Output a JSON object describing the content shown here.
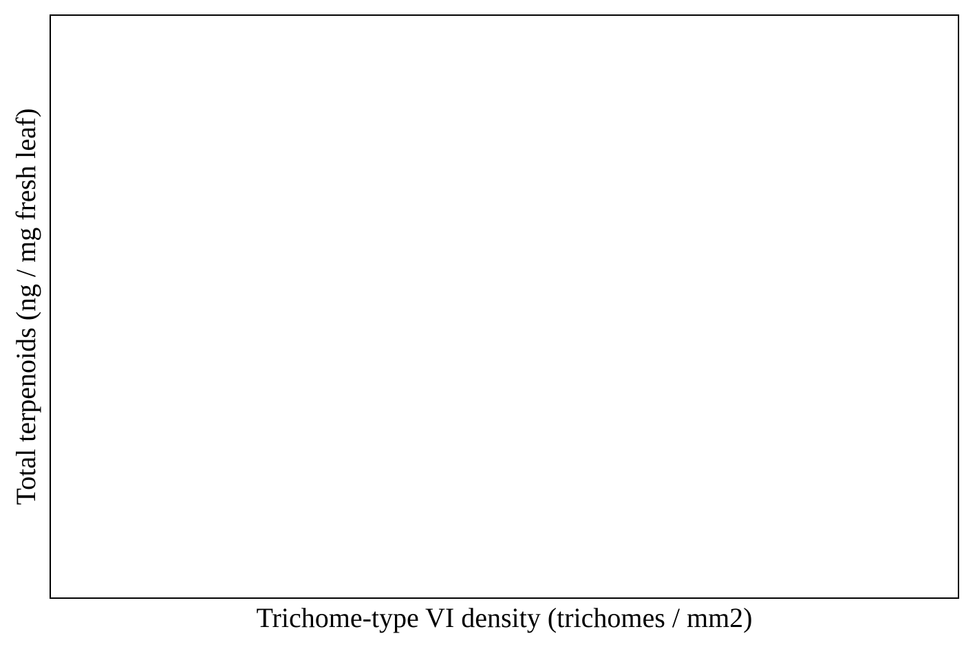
{
  "chart_data": {
    "type": "scatter",
    "title": "",
    "xlabel": "Trichome-type VI density (trichomes / mm2)",
    "ylabel": "Total terpenoids (ng / mg fresh leaf)",
    "series": [],
    "grid": false,
    "legend": "none"
  },
  "colors": {
    "axes": "#000000",
    "background": "#ffffff"
  }
}
